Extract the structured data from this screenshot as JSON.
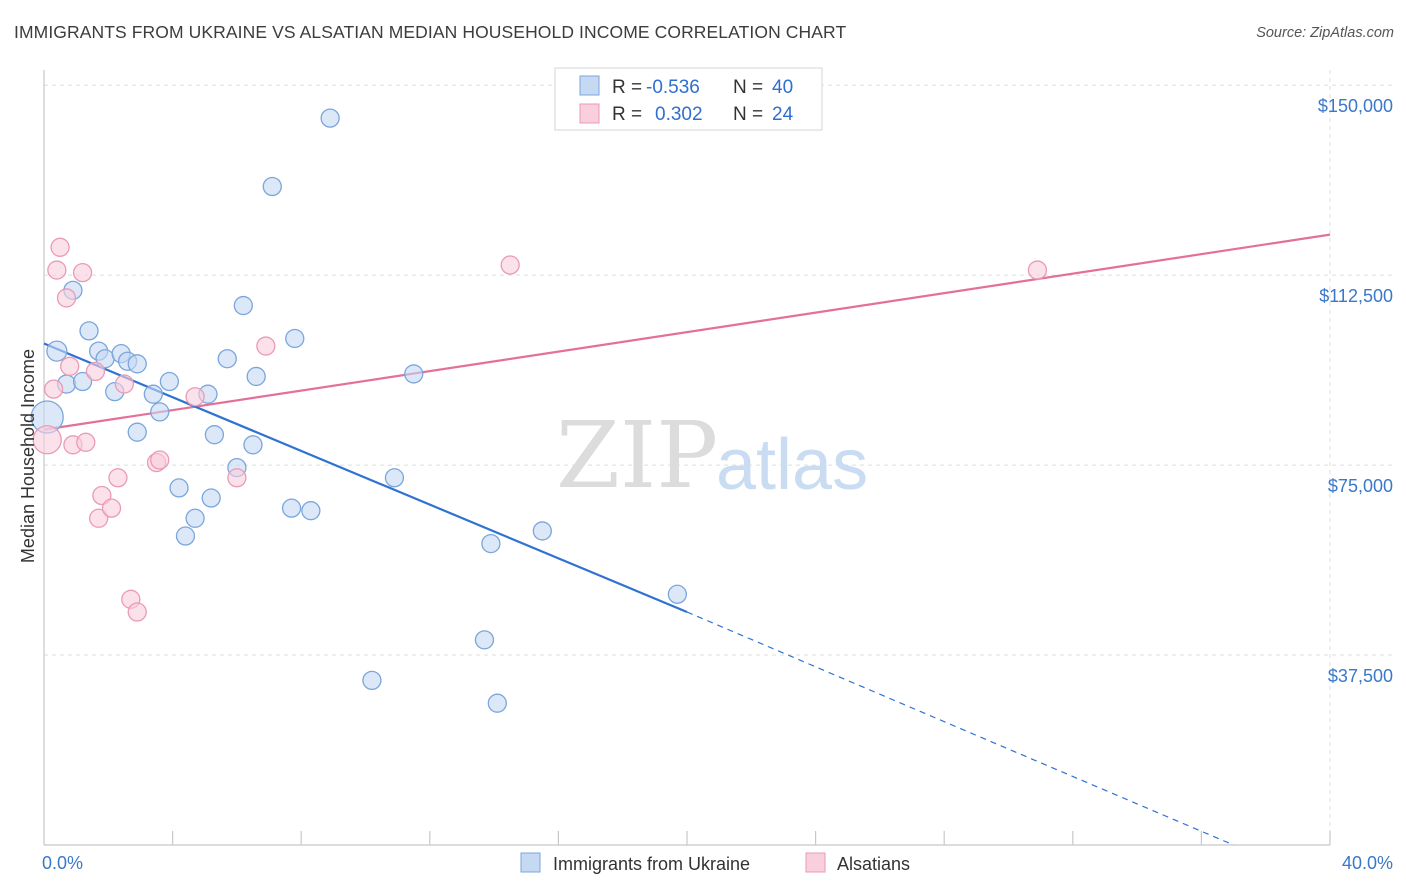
{
  "title": "IMMIGRANTS FROM UKRAINE VS ALSATIAN MEDIAN HOUSEHOLD INCOME CORRELATION CHART",
  "source": "Source: ZipAtlas.com",
  "watermark": {
    "zip": "ZIP",
    "atlas": "atlas"
  },
  "colors": {
    "blue_fill": "#c5d9f3",
    "blue_stroke": "#7aa6dc",
    "blue_line": "#2f72d2",
    "pink_fill": "#f9cfdc",
    "pink_stroke": "#eb9ab4",
    "pink_line": "#e4709a",
    "grid": "#dedede",
    "tick_label": "#3a78c9"
  },
  "legend": {
    "rows": [
      {
        "r_label": "R =",
        "r_value": "-0.536",
        "n_label": "N =",
        "n_value": "40"
      },
      {
        "r_label": "R =",
        "r_value": "0.302",
        "n_label": "N =",
        "n_value": "24"
      }
    ]
  },
  "bottom_legend": [
    "Immigrants from Ukraine",
    "Alsatians"
  ],
  "chart_data": {
    "type": "scatter",
    "ylabel": "Median Household Income",
    "xlim": [
      0,
      40
    ],
    "ylim": [
      0,
      153000
    ],
    "x_tick_labels": [
      "0.0%",
      "40.0%"
    ],
    "y_ticks": [
      37500,
      75000,
      112500,
      150000
    ],
    "y_tick_labels": [
      "$37,500",
      "$75,000",
      "$112,500",
      "$150,000"
    ],
    "grid": true,
    "legend_position": "top-center",
    "series": [
      {
        "name": "Immigrants from Ukraine",
        "points": [
          [
            0.1,
            84500,
            16
          ],
          [
            0.4,
            97500,
            10
          ],
          [
            0.7,
            91000,
            9
          ],
          [
            0.9,
            109500,
            9
          ],
          [
            1.2,
            91500,
            9
          ],
          [
            1.4,
            101500,
            9
          ],
          [
            1.7,
            97500,
            9
          ],
          [
            1.9,
            96000,
            9
          ],
          [
            2.2,
            89500,
            9
          ],
          [
            2.4,
            97000,
            9
          ],
          [
            2.6,
            95500,
            9
          ],
          [
            2.9,
            95000,
            9
          ],
          [
            2.9,
            81500,
            9
          ],
          [
            3.4,
            89000,
            9
          ],
          [
            3.6,
            85500,
            9
          ],
          [
            3.9,
            91500,
            9
          ],
          [
            4.2,
            70500,
            9
          ],
          [
            4.4,
            61000,
            9
          ],
          [
            4.7,
            64500,
            9
          ],
          [
            5.1,
            89000,
            9
          ],
          [
            5.2,
            68500,
            9
          ],
          [
            5.3,
            81000,
            9
          ],
          [
            5.7,
            96000,
            9
          ],
          [
            6.0,
            74500,
            9
          ],
          [
            6.2,
            106500,
            9
          ],
          [
            6.5,
            79000,
            9
          ],
          [
            6.6,
            92500,
            9
          ],
          [
            7.1,
            130000,
            9
          ],
          [
            7.7,
            66500,
            9
          ],
          [
            7.8,
            100000,
            9
          ],
          [
            8.3,
            66000,
            9
          ],
          [
            8.9,
            143500,
            9
          ],
          [
            10.2,
            32500,
            9
          ],
          [
            10.9,
            72500,
            9
          ],
          [
            11.5,
            93000,
            9
          ],
          [
            13.7,
            40500,
            9
          ],
          [
            13.9,
            59500,
            9
          ],
          [
            14.1,
            28000,
            9
          ],
          [
            15.5,
            62000,
            9
          ],
          [
            19.7,
            49500,
            9
          ]
        ],
        "trend": {
          "x": [
            0,
            20
          ],
          "y": [
            99000,
            46000
          ],
          "dashed_to": [
            37,
            0
          ]
        }
      },
      {
        "name": "Alsatians",
        "points": [
          [
            0.1,
            80000,
            14
          ],
          [
            0.3,
            90000,
            9
          ],
          [
            0.5,
            118000,
            9
          ],
          [
            0.4,
            113500,
            9
          ],
          [
            0.7,
            108000,
            9
          ],
          [
            0.8,
            94500,
            9
          ],
          [
            0.9,
            79000,
            9
          ],
          [
            1.2,
            113000,
            9
          ],
          [
            1.3,
            79500,
            9
          ],
          [
            1.6,
            93500,
            9
          ],
          [
            1.7,
            64500,
            9
          ],
          [
            1.8,
            69000,
            9
          ],
          [
            2.1,
            66500,
            9
          ],
          [
            2.3,
            72500,
            9
          ],
          [
            2.5,
            91000,
            9
          ],
          [
            2.7,
            48500,
            9
          ],
          [
            2.9,
            46000,
            9
          ],
          [
            3.5,
            75500,
            9
          ],
          [
            3.6,
            76000,
            9
          ],
          [
            4.7,
            88500,
            9
          ],
          [
            6.0,
            72500,
            9
          ],
          [
            6.9,
            98500,
            9
          ],
          [
            14.5,
            114500,
            9
          ],
          [
            30.9,
            113500,
            9
          ]
        ],
        "trend": {
          "x": [
            0,
            40
          ],
          "y": [
            82000,
            120500
          ]
        }
      }
    ]
  }
}
